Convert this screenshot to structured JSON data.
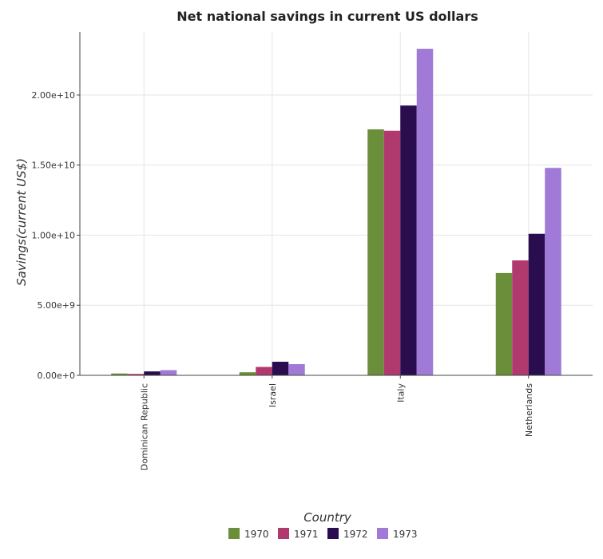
{
  "chart_data": {
    "type": "bar",
    "title": "Net national savings in current US dollars",
    "xlabel": "Country",
    "ylabel": "Savings(current US$)",
    "categories": [
      "Dominican Republic",
      "Israel",
      "Italy",
      "Netherlands"
    ],
    "ylim": [
      0,
      24500000000
    ],
    "yticks": [
      0,
      5000000000,
      10000000000,
      15000000000,
      20000000000
    ],
    "ytick_labels": [
      "0.00e+0",
      "5.00e+9",
      "1.00e+10",
      "1.50e+10",
      "2.00e+10"
    ],
    "grid": true,
    "legend_position": "bottom-center",
    "series": [
      {
        "name": "1970",
        "color": "#6b8e3a",
        "values": [
          130000000,
          220000000,
          17550000000,
          7300000000
        ]
      },
      {
        "name": "1971",
        "color": "#b03a6e",
        "values": [
          100000000,
          600000000,
          17450000000,
          8200000000
        ]
      },
      {
        "name": "1972",
        "color": "#2a0d4e",
        "values": [
          280000000,
          970000000,
          19250000000,
          10100000000
        ]
      },
      {
        "name": "1973",
        "color": "#a07ad6",
        "values": [
          370000000,
          800000000,
          23300000000,
          14800000000
        ]
      }
    ]
  }
}
